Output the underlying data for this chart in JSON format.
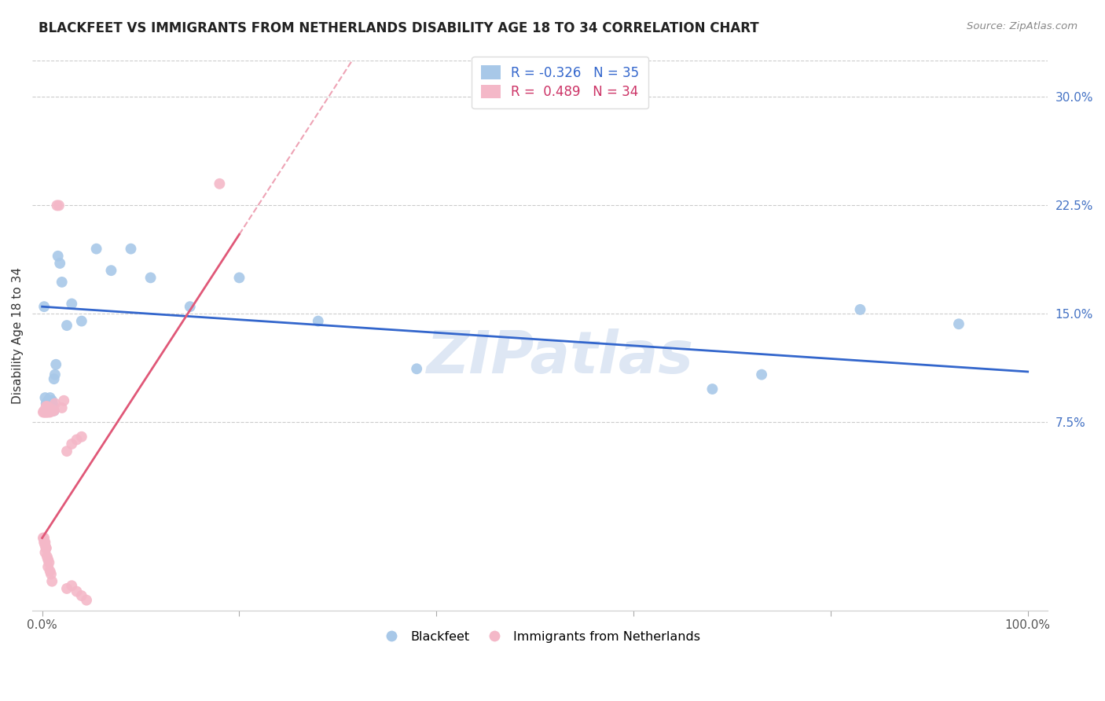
{
  "title": "BLACKFEET VS IMMIGRANTS FROM NETHERLANDS DISABILITY AGE 18 TO 34 CORRELATION CHART",
  "source": "Source: ZipAtlas.com",
  "ylabel": "Disability Age 18 to 34",
  "blue_R": -0.326,
  "blue_N": 35,
  "pink_R": 0.489,
  "pink_N": 34,
  "blue_color": "#a8c8e8",
  "pink_color": "#f4b8c8",
  "blue_line_color": "#3366cc",
  "pink_line_color": "#e05878",
  "watermark": "ZIPatlas",
  "background_color": "#ffffff",
  "xlim": [
    -0.01,
    1.02
  ],
  "ylim": [
    -0.055,
    0.325
  ],
  "yticks": [
    0.075,
    0.15,
    0.225,
    0.3
  ],
  "ytick_labels": [
    "7.5%",
    "15.0%",
    "22.5%",
    "30.0%"
  ],
  "xtick_left_label": "0.0%",
  "xtick_right_label": "100.0%",
  "blue_x": [
    0.002,
    0.003,
    0.004,
    0.005,
    0.006,
    0.007,
    0.008,
    0.009,
    0.01,
    0.011,
    0.012,
    0.013,
    0.014,
    0.016,
    0.018,
    0.02,
    0.025,
    0.03,
    0.04,
    0.055,
    0.07,
    0.09,
    0.11,
    0.15,
    0.2,
    0.28,
    0.38,
    0.68,
    0.73,
    0.83,
    0.004,
    0.006,
    0.008,
    0.012,
    0.93
  ],
  "blue_y": [
    0.155,
    0.092,
    0.088,
    0.087,
    0.09,
    0.088,
    0.092,
    0.088,
    0.09,
    0.087,
    0.105,
    0.108,
    0.115,
    0.19,
    0.185,
    0.172,
    0.142,
    0.157,
    0.145,
    0.195,
    0.18,
    0.195,
    0.175,
    0.155,
    0.175,
    0.145,
    0.112,
    0.098,
    0.108,
    0.153,
    0.083,
    0.083,
    0.083,
    0.083,
    0.143
  ],
  "pink_x": [
    0.001,
    0.002,
    0.002,
    0.003,
    0.003,
    0.004,
    0.004,
    0.004,
    0.005,
    0.005,
    0.005,
    0.006,
    0.006,
    0.007,
    0.007,
    0.008,
    0.008,
    0.009,
    0.01,
    0.011,
    0.012,
    0.013,
    0.015,
    0.017,
    0.02,
    0.022,
    0.025,
    0.03,
    0.035,
    0.04,
    0.002,
    0.003,
    0.004,
    0.18
  ],
  "pink_y": [
    0.082,
    0.082,
    0.083,
    0.082,
    0.083,
    0.082,
    0.083,
    0.086,
    0.082,
    0.083,
    0.086,
    0.082,
    0.084,
    0.083,
    0.085,
    0.082,
    0.084,
    0.083,
    0.083,
    0.083,
    0.083,
    0.088,
    0.225,
    0.225,
    0.085,
    0.09,
    0.055,
    0.06,
    0.063,
    0.065,
    -0.005,
    -0.008,
    -0.012,
    0.24
  ],
  "pink_below_x": [
    0.001,
    0.002,
    0.003,
    0.003,
    0.004,
    0.005,
    0.006,
    0.006,
    0.007,
    0.008,
    0.009,
    0.01,
    0.025,
    0.03,
    0.035,
    0.04,
    0.045
  ],
  "pink_below_y": [
    -0.005,
    -0.008,
    -0.01,
    -0.015,
    -0.012,
    -0.018,
    -0.02,
    -0.025,
    -0.022,
    -0.028,
    -0.03,
    -0.035,
    -0.04,
    -0.038,
    -0.042,
    -0.045,
    -0.048
  ]
}
